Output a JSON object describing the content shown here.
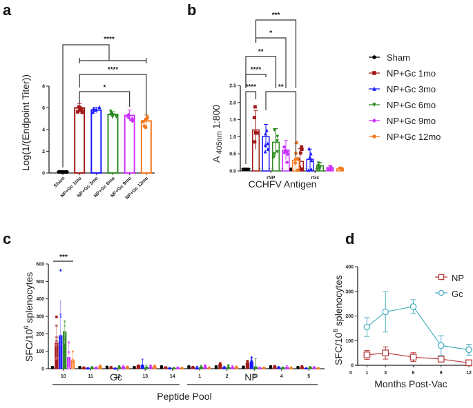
{
  "figure": {
    "panel_labels": [
      "a",
      "b",
      "c",
      "d"
    ]
  },
  "colors": {
    "Sham": "#000000",
    "NP+Gc 1mo": "#a31a1a",
    "NP+Gc 3mo": "#1a1aff",
    "NP+Gc 6mo": "#2e8b22",
    "NP+Gc 9mo": "#cc33ff",
    "NP+Gc 12mo": "#f47a20",
    "NP": "#b83a3a",
    "Gc": "#4ab0c0"
  },
  "chart_data": [
    {
      "panel": "a",
      "type": "bar",
      "title": "",
      "xlabel": "",
      "ylabel": "Log(1/(Endpoint Titer))",
      "ylim": [
        0,
        8
      ],
      "yticks": [
        "0",
        "2",
        "4",
        "6",
        "8"
      ],
      "categories": [
        "Sham",
        "NP+Gc 1mo",
        "NP+Gc 3mo",
        "NP+Gc 6mo",
        "NP+Gc 9mo",
        "NP+Gc 12mo"
      ],
      "values": [
        0.0,
        6.0,
        5.8,
        5.4,
        5.3,
        4.8
      ],
      "errors": [
        0.0,
        0.4,
        0.25,
        0.25,
        0.5,
        0.55
      ],
      "significance": [
        {
          "from": "Sham",
          "to": "NP+Gc 1mo..NP+Gc 12mo",
          "label": "****"
        },
        {
          "from": "NP+Gc 1mo",
          "to": "NP+Gc 12mo",
          "label": "****"
        },
        {
          "from": "NP+Gc 1mo",
          "to": "NP+Gc 9mo",
          "label": "*"
        }
      ]
    },
    {
      "panel": "b",
      "type": "bar",
      "xlabel": "CCHFV Antigen",
      "ylabel_main": "A",
      "ylabel_sub": "405nm",
      "ylabel_tail": "1:800",
      "ylim": [
        0,
        2.5
      ],
      "yticks": [
        "0.0",
        "0.5",
        "1.0",
        "1.5",
        "2.0",
        "2.5"
      ],
      "categories": [
        "rNP",
        "rGc"
      ],
      "series": [
        {
          "name": "Sham",
          "values": [
            0.05,
            0.05
          ],
          "errors": [
            0.01,
            0.01
          ]
        },
        {
          "name": "NP+Gc 1mo",
          "values": [
            1.2,
            0.28
          ],
          "errors": [
            0.57,
            0.38
          ]
        },
        {
          "name": "NP+Gc 3mo",
          "values": [
            1.01,
            0.34
          ],
          "errors": [
            0.35,
            0.3
          ]
        },
        {
          "name": "NP+Gc 6mo",
          "values": [
            0.84,
            0.15
          ],
          "errors": [
            0.4,
            0.1
          ]
        },
        {
          "name": "NP+Gc 9mo",
          "values": [
            0.61,
            0.1
          ],
          "errors": [
            0.28,
            0.05
          ]
        },
        {
          "name": "NP+Gc 12mo",
          "values": [
            0.31,
            0.06
          ],
          "errors": [
            0.49,
            0.02
          ]
        }
      ],
      "baseline_dotted": 0.07,
      "significance": [
        {
          "from": "Sham",
          "to": "NP+Gc 1mo",
          "label": "****"
        },
        {
          "from": "NP+Gc 3mo",
          "to": "NP+Gc 12mo",
          "label": "**"
        },
        {
          "from": "Sham",
          "to": "NP+Gc 3mo",
          "label": "****"
        },
        {
          "from": "Sham",
          "to": "NP+Gc 6mo",
          "label": "**"
        },
        {
          "from": "Sham",
          "to": "NP+Gc 9mo",
          "label": "*"
        },
        {
          "from": "Sham",
          "to": "NP+Gc 12mo",
          "label": "***"
        }
      ],
      "legend": [
        "Sham",
        "NP+Gc 1mo",
        "NP+Gc 3mo",
        "NP+Gc 6mo",
        "NP+Gc 9mo",
        "NP+Gc 12mo"
      ],
      "legend_position": "right"
    },
    {
      "panel": "c",
      "type": "bar",
      "xlabel": "Peptide Pool",
      "ylabel": "SFC/10",
      "ylabel_sup": "6",
      "ylabel_tail": " splenocytes",
      "ylim": [
        0,
        600
      ],
      "yticks": [
        "0",
        "100",
        "200",
        "300",
        "400",
        "500",
        "600"
      ],
      "categories": [
        "10",
        "11",
        "12",
        "13",
        "14",
        "1",
        "2",
        "3",
        "4",
        "5"
      ],
      "groups": [
        {
          "name": "Gc",
          "pools": [
            "10",
            "11",
            "12",
            "13",
            "14"
          ]
        },
        {
          "name": "NP",
          "pools": [
            "1",
            "2",
            "3",
            "4",
            "5"
          ]
        }
      ],
      "series": [
        {
          "name": "Sham",
          "values": [
            8,
            8,
            10,
            8,
            12,
            12,
            12,
            10,
            12,
            8
          ]
        },
        {
          "name": "NP+Gc 1mo",
          "values": [
            148,
            6,
            6,
            18,
            8,
            10,
            25,
            30,
            12,
            10
          ]
        },
        {
          "name": "NP+Gc 3mo",
          "values": [
            190,
            4,
            3,
            20,
            4,
            5,
            8,
            40,
            8,
            3
          ]
        },
        {
          "name": "NP+Gc 6mo",
          "values": [
            213,
            6,
            8,
            10,
            4,
            10,
            10,
            12,
            5,
            8
          ]
        },
        {
          "name": "NP+Gc 9mo",
          "values": [
            65,
            5,
            10,
            10,
            4,
            10,
            10,
            4,
            10,
            5
          ]
        },
        {
          "name": "NP+Gc 12mo",
          "values": [
            48,
            12,
            10,
            12,
            4,
            4,
            10,
            6,
            4,
            4
          ]
        }
      ],
      "errors": {
        "NP+Gc 1mo": [
          95,
          4,
          4,
          5,
          3,
          4,
          6,
          15,
          4,
          4
        ],
        "NP+Gc 3mo": [
          198,
          3,
          2,
          35,
          3,
          10,
          5,
          25,
          5,
          2
        ],
        "NP+Gc 6mo": [
          65,
          4,
          6,
          10,
          3,
          10,
          8,
          45,
          3,
          5
        ],
        "NP+Gc 9mo": [
          80,
          3,
          10,
          12,
          3,
          10,
          8,
          3,
          8,
          4
        ],
        "NP+Gc 12mo": [
          50,
          6,
          6,
          6,
          3,
          3,
          6,
          4,
          3,
          3
        ]
      },
      "significance": [
        {
          "pool": "10",
          "label": "***"
        }
      ]
    },
    {
      "panel": "d",
      "type": "line",
      "xlabel": "Months Post-Vac",
      "ylabel": "SFC/10",
      "ylabel_sup": "6",
      "ylabel_tail": " splenocytes",
      "xlim": [
        0,
        12
      ],
      "ylim": [
        0,
        400
      ],
      "xticks": [
        "0",
        "1",
        "3",
        "6",
        "9",
        "12"
      ],
      "yticks": [
        "0",
        "100",
        "200",
        "300",
        "400"
      ],
      "x": [
        1,
        3,
        6,
        9,
        12
      ],
      "series": [
        {
          "name": "NP",
          "marker": "square",
          "values": [
            42,
            50,
            33,
            25,
            10
          ],
          "errors": [
            18,
            25,
            18,
            10,
            8
          ]
        },
        {
          "name": "Gc",
          "marker": "circle",
          "values": [
            155,
            217,
            238,
            80,
            63
          ],
          "errors": [
            38,
            82,
            28,
            40,
            22
          ]
        }
      ],
      "legend_position": "top-right"
    }
  ]
}
